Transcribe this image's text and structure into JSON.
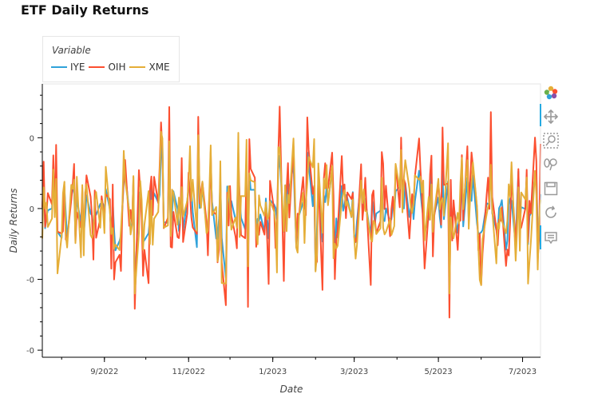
{
  "title": "ETF Daily Returns",
  "legend": {
    "title": "Variable",
    "items": [
      {
        "label": "IYE",
        "color": "#30a2da"
      },
      {
        "label": "OIH",
        "color": "#fc4f30"
      },
      {
        "label": "XME",
        "color": "#e5ae38"
      }
    ]
  },
  "toolbar": {
    "tools": [
      "bokeh-logo-icon",
      "pan-icon",
      "box-zoom-icon",
      "wheel-zoom-icon",
      "save-icon",
      "reset-icon",
      "hover-icon"
    ]
  },
  "chart_data": {
    "type": "line",
    "xlabel": "Date",
    "ylabel": "Daily Returns",
    "x_ticks": [
      "9/2022",
      "11/2022",
      "1/2023",
      "3/2023",
      "5/2023",
      "7/2023"
    ],
    "y_ticks": [
      "0",
      "0",
      "-0",
      "-0"
    ],
    "y_tick_values": [
      0.05,
      0.0,
      -0.05,
      -0.1
    ],
    "xlim": [
      "2022-07-18",
      "2023-07-14"
    ],
    "ylim": [
      -0.105,
      0.088
    ],
    "grid": false,
    "legend_position": "top-left",
    "series": [
      {
        "name": "IYE",
        "color": "#30a2da"
      },
      {
        "name": "OIH",
        "color": "#fc4f30"
      },
      {
        "name": "XME",
        "color": "#e5ae38"
      }
    ],
    "values_note": "daily returns approximately within -0.085 to 0.072"
  }
}
